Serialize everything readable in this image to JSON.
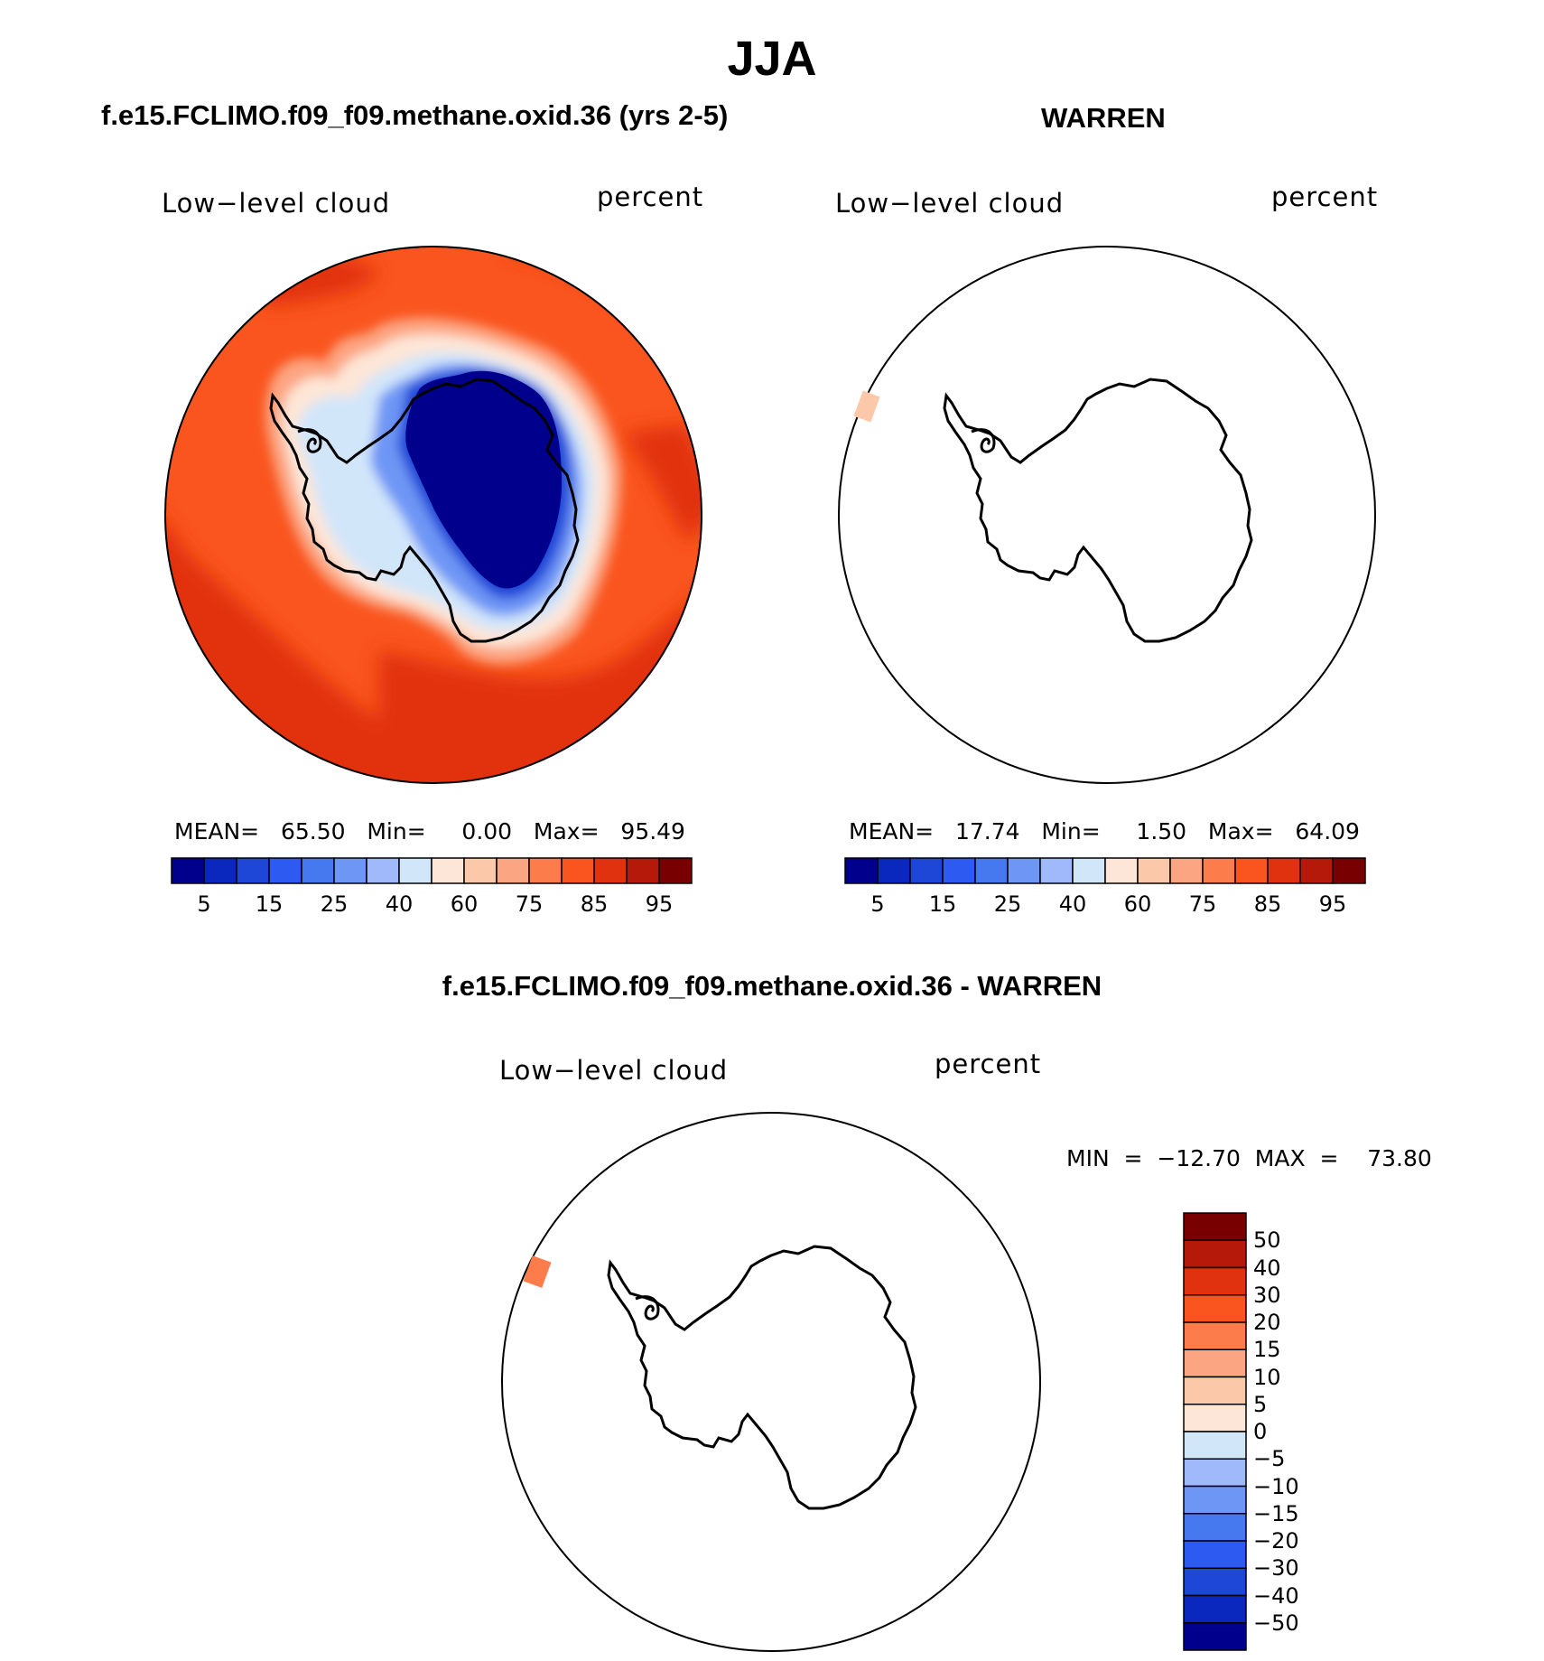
{
  "title": "JJA",
  "panels": {
    "model": {
      "title": "f.e15.FCLIMO.f09_f09.methane.oxid.36 (yrs 2-5)",
      "variable": "Low−level cloud",
      "units": "percent",
      "stats": "MEAN=   65.50   Min=     0.00   Max=   95.49",
      "mean": 65.5,
      "min": 0.0,
      "max": 95.49
    },
    "obs": {
      "title": "WARREN",
      "variable": "Low−level cloud",
      "units": "percent",
      "stats": "MEAN=   17.74   Min=     1.50   Max=   64.09",
      "mean": 17.74,
      "min": 1.5,
      "max": 64.09
    },
    "diff": {
      "title": "f.e15.FCLIMO.f09_f09.methane.oxid.36 - WARREN",
      "variable": "Low−level cloud",
      "units": "percent",
      "stats": "MIN  =  −12.70  MAX  =    73.80",
      "min": -12.7,
      "max": 73.8
    }
  },
  "chart_data": [
    {
      "type": "heatmap",
      "projection": "south-polar stereographic",
      "title": "f.e15.FCLIMO.f09_f09.methane.oxid.36 (yrs 2-5)",
      "field": "Low-level cloud",
      "units": "percent",
      "summary": {
        "mean": 65.5,
        "min": 0.0,
        "max": 95.49
      },
      "colorbar": {
        "orientation": "horizontal",
        "tick_labels": [
          "5",
          "15",
          "25",
          "40",
          "60",
          "75",
          "85",
          "95"
        ],
        "colors": [
          "#00008c",
          "#0a28be",
          "#1e46d7",
          "#2d5af0",
          "#4678f0",
          "#6e96f5",
          "#a0b9fa",
          "#d2e6fa",
          "#fde6d7",
          "#fcc8aa",
          "#fca582",
          "#fc7d4b",
          "#fa551e",
          "#e1320f",
          "#b4190a",
          "#780000"
        ]
      }
    },
    {
      "type": "heatmap",
      "projection": "south-polar stereographic",
      "title": "WARREN",
      "field": "Low-level cloud",
      "units": "percent",
      "summary": {
        "mean": 17.74,
        "min": 1.5,
        "max": 64.09
      },
      "colorbar": {
        "orientation": "horizontal",
        "tick_labels": [
          "5",
          "15",
          "25",
          "40",
          "60",
          "75",
          "85",
          "95"
        ],
        "colors": [
          "#00008c",
          "#0a28be",
          "#1e46d7",
          "#2d5af0",
          "#4678f0",
          "#6e96f5",
          "#a0b9fa",
          "#d2e6fa",
          "#fde6d7",
          "#fcc8aa",
          "#fca582",
          "#fc7d4b",
          "#fa551e",
          "#e1320f",
          "#b4190a",
          "#780000"
        ]
      }
    },
    {
      "type": "heatmap",
      "projection": "south-polar stereographic",
      "title": "f.e15.FCLIMO.f09_f09.methane.oxid.36 - WARREN",
      "field": "Low-level cloud",
      "units": "percent",
      "summary": {
        "min": -12.7,
        "max": 73.8
      },
      "colorbar": {
        "orientation": "vertical",
        "tick_labels": [
          "50",
          "40",
          "30",
          "20",
          "15",
          "10",
          "5",
          "0",
          "−5",
          "−10",
          "−15",
          "−20",
          "−30",
          "−40",
          "−50"
        ],
        "colors": [
          "#780000",
          "#b4190a",
          "#e1320f",
          "#fa551e",
          "#fc7d4b",
          "#fca582",
          "#fcc8aa",
          "#fde6d7",
          "#d2e6fa",
          "#a0b9fa",
          "#6e96f5",
          "#4678f0",
          "#2d5af0",
          "#1e46d7",
          "#0a28be",
          "#00008c"
        ]
      }
    }
  ]
}
